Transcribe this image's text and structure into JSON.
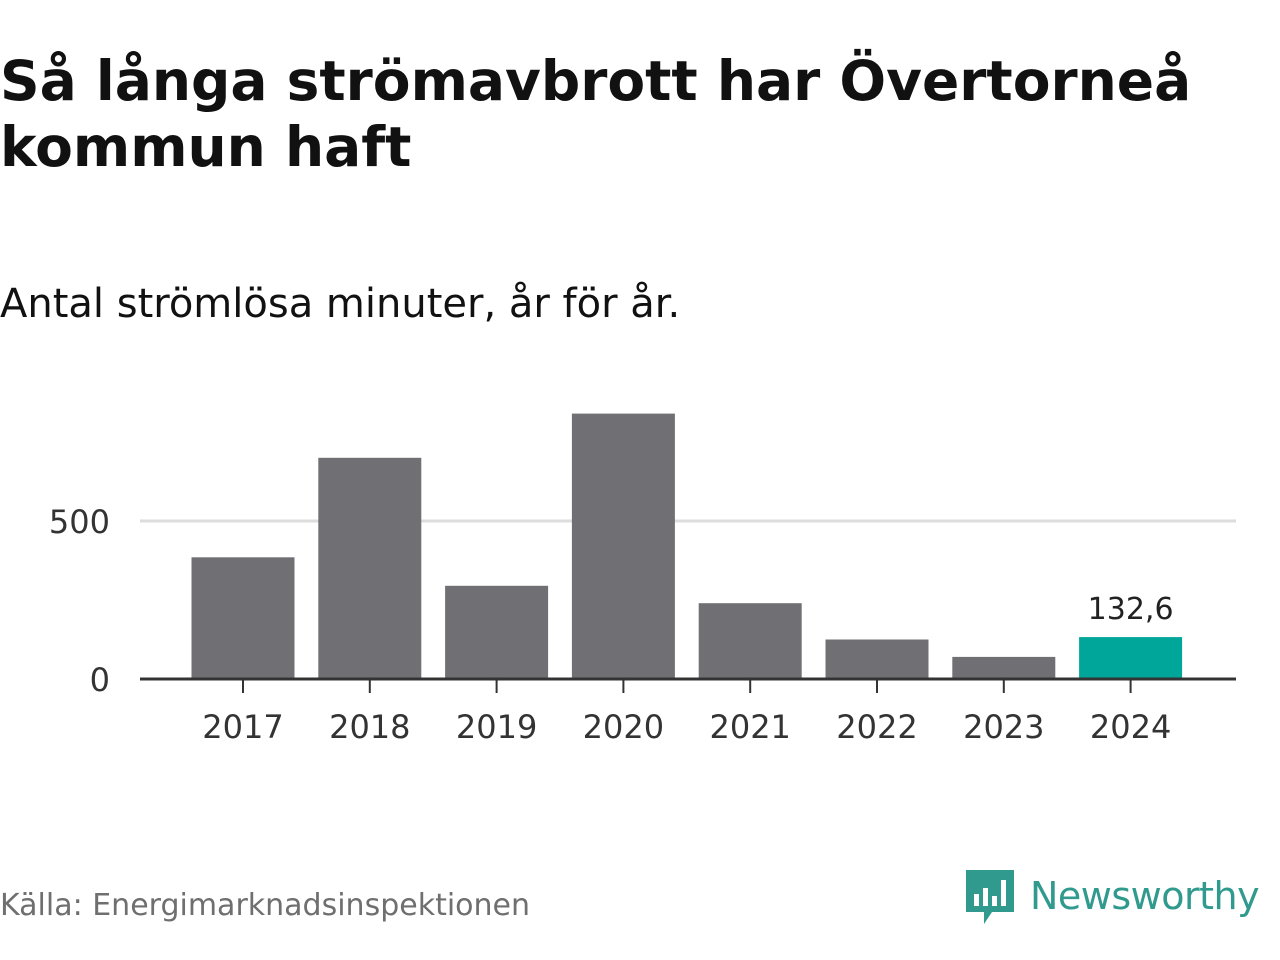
{
  "title": "Så långa strömavbrott har Övertorneå kommun haft",
  "subtitle": "Antal strömlösa minuter, år för år.",
  "source": "Källa: Energimarknadsinspektionen",
  "brand": "Newsworthy",
  "colors": {
    "bar": "#706f74",
    "highlight": "#00a69a",
    "grid": "#dddddd",
    "axis": "#333333",
    "brand": "#2f9a8d"
  },
  "chart_data": {
    "type": "bar",
    "categories": [
      "2017",
      "2018",
      "2019",
      "2020",
      "2021",
      "2022",
      "2023",
      "2024"
    ],
    "values": [
      385,
      700,
      295,
      840,
      240,
      125,
      70,
      132.6
    ],
    "highlight_index": 7,
    "data_labels": [
      {
        "index": 7,
        "text": "132,6"
      }
    ],
    "y_ticks": [
      {
        "value": 0,
        "label": "0"
      },
      {
        "value": 500,
        "label": "500"
      }
    ],
    "ylim": [
      0,
      870
    ],
    "grid": true
  }
}
